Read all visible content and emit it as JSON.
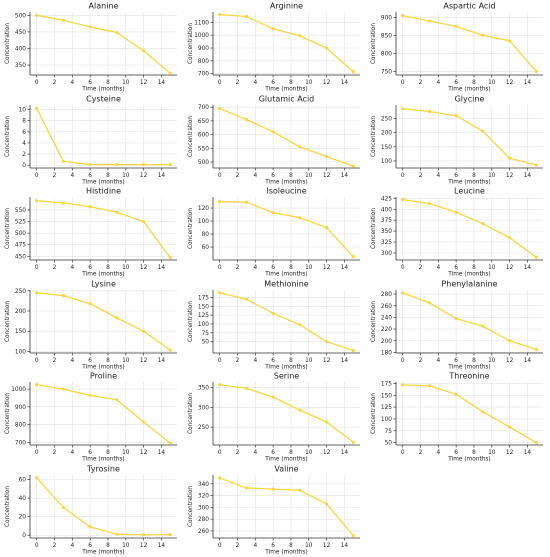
{
  "figure": {
    "line_color": "#f5d742",
    "grid_color": "#e3e3e3",
    "axis_color": "#333333",
    "columns": 3,
    "rows": 6
  },
  "chart_data": [
    {
      "type": "line",
      "title": "Alanine",
      "xlabel": "Time (months)",
      "ylabel": "Concentration",
      "x": [
        0,
        3,
        6,
        9,
        12,
        15
      ],
      "y": [
        500,
        485,
        465,
        448,
        393,
        325
      ],
      "xticks": [
        0,
        2,
        4,
        6,
        8,
        10,
        12,
        14
      ],
      "yticks": [
        350,
        400,
        450,
        500
      ],
      "ylim": [
        320,
        510
      ],
      "xlim": [
        -0.75,
        15.75
      ],
      "grid": true
    },
    {
      "type": "line",
      "title": "Arginine",
      "xlabel": "Time (months)",
      "ylabel": "Concentration",
      "x": [
        0,
        3,
        6,
        9,
        12,
        15
      ],
      "y": [
        1160,
        1145,
        1050,
        995,
        900,
        715
      ],
      "xticks": [
        0,
        2,
        4,
        6,
        8,
        10,
        12,
        14
      ],
      "yticks": [
        700,
        800,
        900,
        1000,
        1100
      ],
      "ylim": [
        690,
        1180
      ],
      "xlim": [
        -0.75,
        15.75
      ],
      "grid": true
    },
    {
      "type": "line",
      "title": "Aspartic Acid",
      "xlabel": "Time (months)",
      "ylabel": "Concentration",
      "x": [
        0,
        3,
        6,
        9,
        12,
        15
      ],
      "y": [
        905,
        890,
        875,
        850,
        835,
        750
      ],
      "xticks": [
        0,
        2,
        4,
        6,
        8,
        10,
        12,
        14
      ],
      "yticks": [
        750,
        800,
        850,
        900
      ],
      "ylim": [
        740,
        915
      ],
      "xlim": [
        -0.75,
        15.75
      ],
      "grid": true
    },
    {
      "type": "line",
      "title": "Cysteine",
      "xlabel": "Time (months)",
      "ylabel": "Concentration",
      "x": [
        0,
        3,
        6,
        9,
        12,
        15
      ],
      "y": [
        10.2,
        0.7,
        0.1,
        0.1,
        0.1,
        0.1
      ],
      "xticks": [
        0,
        2,
        4,
        6,
        8,
        10,
        12,
        14
      ],
      "yticks": [
        0,
        2,
        4,
        6,
        8,
        10
      ],
      "ylim": [
        -0.5,
        10.8
      ],
      "xlim": [
        -0.75,
        15.75
      ],
      "grid": true
    },
    {
      "type": "line",
      "title": "Glutamic Acid",
      "xlabel": "Time (months)",
      "ylabel": "Concentration",
      "x": [
        0,
        3,
        6,
        9,
        12,
        15
      ],
      "y": [
        695,
        655,
        610,
        555,
        520,
        485
      ],
      "xticks": [
        0,
        2,
        4,
        6,
        8,
        10,
        12,
        14
      ],
      "yticks": [
        500,
        550,
        600,
        650,
        700
      ],
      "ylim": [
        478,
        708
      ],
      "xlim": [
        -0.75,
        15.75
      ],
      "grid": true
    },
    {
      "type": "line",
      "title": "Glycine",
      "xlabel": "Time (months)",
      "ylabel": "Concentration",
      "x": [
        0,
        3,
        6,
        9,
        12,
        15
      ],
      "y": [
        285,
        275,
        260,
        205,
        110,
        85
      ],
      "xticks": [
        0,
        2,
        4,
        6,
        8,
        10,
        12,
        14
      ],
      "yticks": [
        100,
        150,
        200,
        250
      ],
      "ylim": [
        75,
        298
      ],
      "xlim": [
        -0.75,
        15.75
      ],
      "grid": true
    },
    {
      "type": "line",
      "title": "Histidine",
      "xlabel": "Time (months)",
      "ylabel": "Concentration",
      "x": [
        0,
        3,
        6,
        9,
        12,
        15
      ],
      "y": [
        570,
        565,
        557,
        545,
        525,
        447
      ],
      "xticks": [
        0,
        2,
        4,
        6,
        8,
        10,
        12,
        14
      ],
      "yticks": [
        450,
        475,
        500,
        525,
        550
      ],
      "ylim": [
        442,
        578
      ],
      "xlim": [
        -0.75,
        15.75
      ],
      "grid": true
    },
    {
      "type": "line",
      "title": "Isoleucine",
      "xlabel": "Time (months)",
      "ylabel": "Concentration",
      "x": [
        0,
        3,
        6,
        9,
        12,
        15
      ],
      "y": [
        130,
        129,
        113,
        105,
        90,
        45
      ],
      "xticks": [
        0,
        2,
        4,
        6,
        8,
        10,
        12,
        14
      ],
      "yticks": [
        60,
        80,
        100,
        120
      ],
      "ylim": [
        40,
        137
      ],
      "xlim": [
        -0.75,
        15.75
      ],
      "grid": true
    },
    {
      "type": "line",
      "title": "Leucine",
      "xlabel": "Time (months)",
      "ylabel": "Concentration",
      "x": [
        0,
        3,
        6,
        9,
        12,
        15
      ],
      "y": [
        422,
        413,
        393,
        367,
        335,
        290
      ],
      "xticks": [
        0,
        2,
        4,
        6,
        8,
        10,
        12,
        14
      ],
      "yticks": [
        300,
        325,
        350,
        375,
        400,
        425
      ],
      "ylim": [
        284,
        428
      ],
      "xlim": [
        -0.75,
        15.75
      ],
      "grid": true
    },
    {
      "type": "line",
      "title": "Lysine",
      "xlabel": "Time (months)",
      "ylabel": "Concentration",
      "x": [
        0,
        3,
        6,
        9,
        12,
        15
      ],
      "y": [
        245,
        238,
        218,
        183,
        150,
        103
      ],
      "xticks": [
        0,
        2,
        4,
        6,
        8,
        10,
        12,
        14
      ],
      "yticks": [
        100,
        150,
        200,
        250
      ],
      "ylim": [
        96,
        252
      ],
      "xlim": [
        -0.75,
        15.75
      ],
      "grid": true
    },
    {
      "type": "line",
      "title": "Methionine",
      "xlabel": "Time (months)",
      "ylabel": "Concentration",
      "x": [
        0,
        3,
        6,
        9,
        12,
        15
      ],
      "y": [
        188,
        170,
        130,
        98,
        50,
        25
      ],
      "xticks": [
        0,
        2,
        4,
        6,
        8,
        10,
        12,
        14
      ],
      "yticks": [
        50,
        75,
        100,
        125,
        150,
        175
      ],
      "ylim": [
        18,
        196
      ],
      "xlim": [
        -0.75,
        15.75
      ],
      "grid": true
    },
    {
      "type": "line",
      "title": "Phenylalanine",
      "xlabel": "Time (months)",
      "ylabel": "Concentration",
      "x": [
        0,
        3,
        6,
        9,
        12,
        15
      ],
      "y": [
        282,
        265,
        238,
        225,
        200,
        185
      ],
      "xticks": [
        0,
        2,
        4,
        6,
        8,
        10,
        12,
        14
      ],
      "yticks": [
        180,
        200,
        220,
        240,
        260,
        280
      ],
      "ylim": [
        179,
        287
      ],
      "xlim": [
        -0.75,
        15.75
      ],
      "grid": true
    },
    {
      "type": "line",
      "title": "Proline",
      "xlabel": "Time (months)",
      "ylabel": "Concentration",
      "x": [
        0,
        3,
        6,
        9,
        12,
        15
      ],
      "y": [
        1025,
        1000,
        965,
        940,
        815,
        695
      ],
      "xticks": [
        0,
        2,
        4,
        6,
        8,
        10,
        12,
        14
      ],
      "yticks": [
        700,
        800,
        900,
        1000
      ],
      "ylim": [
        685,
        1040
      ],
      "xlim": [
        -0.75,
        15.75
      ],
      "grid": true
    },
    {
      "type": "line",
      "title": "Serine",
      "xlabel": "Time (months)",
      "ylabel": "Concentration",
      "x": [
        0,
        3,
        6,
        9,
        12,
        15
      ],
      "y": [
        357,
        348,
        326,
        293,
        263,
        212
      ],
      "xticks": [
        0,
        2,
        4,
        6,
        8,
        10,
        12,
        14
      ],
      "yticks": [
        250,
        300,
        350
      ],
      "ylim": [
        205,
        364
      ],
      "xlim": [
        -0.75,
        15.75
      ],
      "grid": true
    },
    {
      "type": "line",
      "title": "Threonine",
      "xlabel": "Time (months)",
      "ylabel": "Concentration",
      "x": [
        0,
        3,
        6,
        9,
        12,
        15
      ],
      "y": [
        172,
        170,
        152,
        115,
        83,
        50
      ],
      "xticks": [
        0,
        2,
        4,
        6,
        8,
        10,
        12,
        14
      ],
      "yticks": [
        50,
        75,
        100,
        125,
        150,
        175
      ],
      "ylim": [
        45,
        178
      ],
      "xlim": [
        -0.75,
        15.75
      ],
      "grid": true
    },
    {
      "type": "line",
      "title": "Tyrosine",
      "xlabel": "Time (months)",
      "ylabel": "Concentration",
      "x": [
        0,
        3,
        6,
        9,
        12,
        15
      ],
      "y": [
        62,
        30,
        9,
        1,
        0.5,
        0.5
      ],
      "xticks": [
        0,
        2,
        4,
        6,
        8,
        10,
        12,
        14
      ],
      "yticks": [
        0,
        20,
        40,
        60
      ],
      "ylim": [
        -3,
        65
      ],
      "xlim": [
        -0.75,
        15.75
      ],
      "grid": true
    },
    {
      "type": "line",
      "title": "Valine",
      "xlabel": "Time (months)",
      "ylabel": "Concentration",
      "x": [
        0,
        3,
        6,
        9,
        12,
        15
      ],
      "y": [
        350,
        333,
        331,
        329,
        306,
        252
      ],
      "xticks": [
        0,
        2,
        4,
        6,
        8,
        10,
        12,
        14
      ],
      "yticks": [
        260,
        280,
        300,
        320,
        340
      ],
      "ylim": [
        248,
        355
      ],
      "xlim": [
        -0.75,
        15.75
      ],
      "grid": true
    }
  ]
}
